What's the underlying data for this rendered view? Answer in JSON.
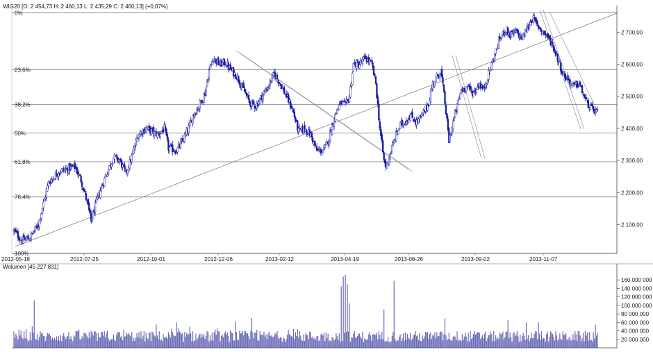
{
  "chart_data": [
    {
      "type": "candlestick",
      "header": "WIG20 [O: 2 454,73  H: 2 460,13  L: 2 435,29  C: 2 460,13] (+0,07%)",
      "ohlc": {
        "open": 2454.73,
        "high": 2460.13,
        "low": 2435.29,
        "close": 2460.13,
        "change_pct": 0.07
      },
      "x_ticks": [
        "2012-05-18",
        "2012-07-25",
        "2012-10-01",
        "2012-12-06",
        "2013-02-12",
        "2013-04-19",
        "2013-06-26",
        "2013-09-02",
        "2013-11-07"
      ],
      "y_ticks": [
        {
          "value": 2100,
          "label": "2 100,00"
        },
        {
          "value": 2200,
          "label": "2 200,00"
        },
        {
          "value": 2300,
          "label": "2 300,00"
        },
        {
          "value": 2400,
          "label": "2 400,00"
        },
        {
          "value": 2500,
          "label": "2 500,00"
        },
        {
          "value": 2600,
          "label": "2 600,00"
        },
        {
          "value": 2700,
          "label": "2 700,00"
        }
      ],
      "ylim": [
        2010,
        2770
      ],
      "fib_levels": [
        {
          "label": "0%",
          "value": 2760
        },
        {
          "label": "23,6%",
          "value": 2583
        },
        {
          "label": "38,2%",
          "value": 2474
        },
        {
          "label": "50%",
          "value": 2385
        },
        {
          "label": "61,8%",
          "value": 2296
        },
        {
          "label": "76,4%",
          "value": 2186
        },
        {
          "label": "100%",
          "value": 2010
        }
      ],
      "close_path": [
        [
          0,
          2080
        ],
        [
          8,
          2050
        ],
        [
          16,
          2060
        ],
        [
          24,
          2100
        ],
        [
          34,
          2230
        ],
        [
          44,
          2265
        ],
        [
          54,
          2275
        ],
        [
          60,
          2280
        ],
        [
          66,
          2240
        ],
        [
          72,
          2170
        ],
        [
          76,
          2110
        ],
        [
          82,
          2180
        ],
        [
          90,
          2250
        ],
        [
          98,
          2310
        ],
        [
          104,
          2300
        ],
        [
          110,
          2260
        ],
        [
          116,
          2310
        ],
        [
          122,
          2380
        ],
        [
          130,
          2400
        ],
        [
          136,
          2390
        ],
        [
          142,
          2380
        ],
        [
          148,
          2400
        ],
        [
          152,
          2340
        ],
        [
          160,
          2330
        ],
        [
          166,
          2360
        ],
        [
          172,
          2400
        ],
        [
          176,
          2440
        ],
        [
          182,
          2470
        ],
        [
          188,
          2510
        ],
        [
          192,
          2580
        ],
        [
          196,
          2620
        ],
        [
          202,
          2600
        ],
        [
          208,
          2605
        ],
        [
          214,
          2580
        ],
        [
          220,
          2560
        ],
        [
          226,
          2520
        ],
        [
          232,
          2480
        ],
        [
          238,
          2470
        ],
        [
          244,
          2500
        ],
        [
          250,
          2530
        ],
        [
          256,
          2570
        ],
        [
          262,
          2540
        ],
        [
          268,
          2500
        ],
        [
          274,
          2460
        ],
        [
          280,
          2390
        ],
        [
          286,
          2400
        ],
        [
          292,
          2380
        ],
        [
          298,
          2330
        ],
        [
          304,
          2330
        ],
        [
          308,
          2350
        ],
        [
          314,
          2420
        ],
        [
          318,
          2460
        ],
        [
          322,
          2480
        ],
        [
          326,
          2470
        ],
        [
          330,
          2500
        ],
        [
          334,
          2600
        ],
        [
          340,
          2600
        ],
        [
          346,
          2620
        ],
        [
          352,
          2600
        ],
        [
          356,
          2540
        ],
        [
          360,
          2400
        ],
        [
          364,
          2300
        ],
        [
          366,
          2280
        ],
        [
          370,
          2320
        ],
        [
          376,
          2380
        ],
        [
          380,
          2410
        ],
        [
          384,
          2420
        ],
        [
          390,
          2440
        ],
        [
          396,
          2420
        ],
        [
          402,
          2440
        ],
        [
          408,
          2480
        ],
        [
          412,
          2540
        ],
        [
          416,
          2560
        ],
        [
          420,
          2580
        ],
        [
          424,
          2480
        ],
        [
          428,
          2360
        ],
        [
          432,
          2420
        ],
        [
          436,
          2470
        ],
        [
          440,
          2520
        ],
        [
          446,
          2530
        ],
        [
          452,
          2510
        ],
        [
          458,
          2540
        ],
        [
          462,
          2520
        ],
        [
          466,
          2560
        ],
        [
          472,
          2620
        ],
        [
          478,
          2680
        ],
        [
          484,
          2710
        ],
        [
          488,
          2690
        ],
        [
          494,
          2700
        ],
        [
          500,
          2680
        ],
        [
          506,
          2720
        ],
        [
          510,
          2745
        ],
        [
          514,
          2725
        ],
        [
          518,
          2710
        ],
        [
          524,
          2690
        ],
        [
          530,
          2660
        ],
        [
          536,
          2610
        ],
        [
          540,
          2570
        ],
        [
          546,
          2550
        ],
        [
          550,
          2530
        ],
        [
          556,
          2540
        ],
        [
          562,
          2490
        ],
        [
          568,
          2460
        ],
        [
          574,
          2450
        ]
      ],
      "volume": {
        "label": "Wolumen [45 227 831]",
        "y_ticks": [
          {
            "value": 20000000,
            "label": "20 000 000"
          },
          {
            "value": 40000000,
            "label": "40 000 000"
          },
          {
            "value": 60000000,
            "label": "60 000 000"
          },
          {
            "value": 80000000,
            "label": "80 000 000"
          },
          {
            "value": 100000000,
            "label": "100 000 000"
          },
          {
            "value": 120000000,
            "label": "120 000 000"
          },
          {
            "value": 140000000,
            "label": "140 000 000"
          },
          {
            "value": 160000000,
            "label": "160 000 000"
          }
        ],
        "ylim": [
          0,
          180000000
        ],
        "spikes": [
          [
            20,
            112000000
          ],
          [
            140,
            55000000
          ],
          [
            160,
            60000000
          ],
          [
            218,
            62000000
          ],
          [
            234,
            70000000
          ],
          [
            322,
            145000000
          ],
          [
            324,
            168000000
          ],
          [
            326,
            172000000
          ],
          [
            328,
            150000000
          ],
          [
            330,
            105000000
          ],
          [
            364,
            90000000
          ],
          [
            374,
            158000000
          ],
          [
            424,
            70000000
          ],
          [
            486,
            65000000
          ],
          [
            504,
            60000000
          ],
          [
            516,
            60000000
          ]
        ]
      }
    }
  ]
}
